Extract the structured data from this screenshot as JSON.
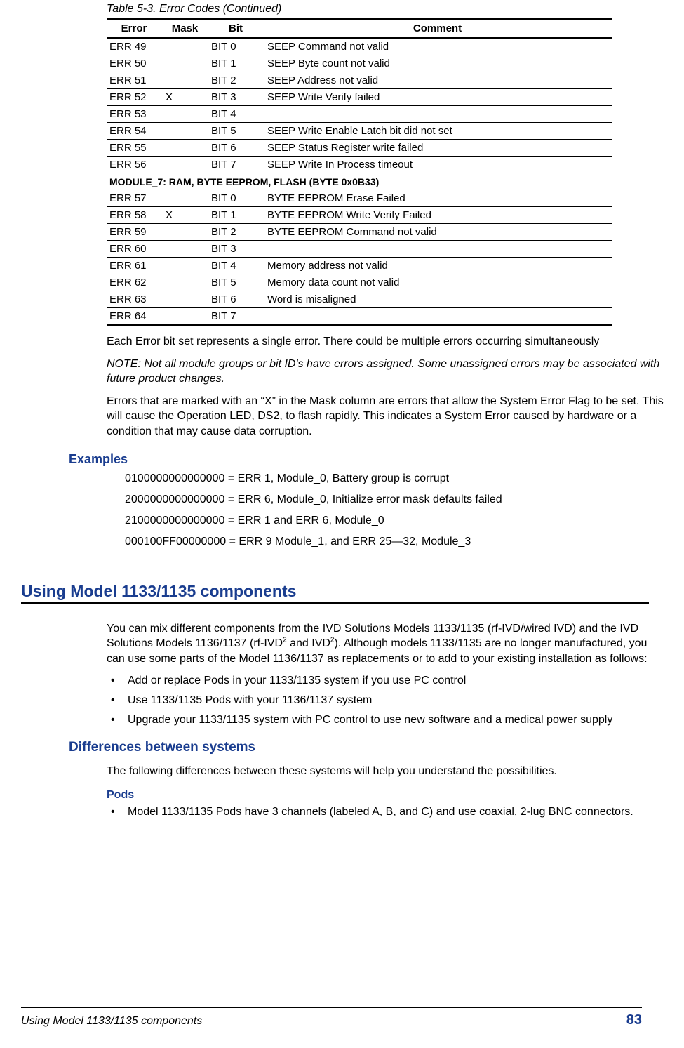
{
  "colors": {
    "accent": "#1a3d8f",
    "rule": "#000000",
    "text": "#000000",
    "background": "#ffffff"
  },
  "tableCaption": "Table 5-3. Error Codes  (Continued)",
  "columns": [
    "Error",
    "Mask",
    "Bit",
    "Comment"
  ],
  "rows": [
    {
      "error": "ERR 49",
      "mask": "",
      "bit": "BIT 0",
      "comment": "SEEP Command not valid"
    },
    {
      "error": "ERR 50",
      "mask": "",
      "bit": "BIT 1",
      "comment": "SEEP Byte count not valid"
    },
    {
      "error": "ERR 51",
      "mask": "",
      "bit": "BIT 2",
      "comment": "SEEP Address not valid"
    },
    {
      "error": "ERR 52",
      "mask": "X",
      "bit": "BIT 3",
      "comment": "SEEP Write Verify failed"
    },
    {
      "error": "ERR 53",
      "mask": "",
      "bit": "BIT 4",
      "comment": ""
    },
    {
      "error": "ERR 54",
      "mask": "",
      "bit": "BIT 5",
      "comment": "SEEP Write Enable Latch bit did not set"
    },
    {
      "error": "ERR 55",
      "mask": "",
      "bit": "BIT 6",
      "comment": "SEEP Status Register write failed"
    },
    {
      "error": "ERR 56",
      "mask": "",
      "bit": "BIT 7",
      "comment": "SEEP Write In Process timeout"
    },
    {
      "section": "MODULE_7: RAM, BYTE EEPROM, FLASH (BYTE 0x0B33)"
    },
    {
      "error": "ERR 57",
      "mask": "",
      "bit": "BIT 0",
      "comment": "BYTE EEPROM Erase Failed"
    },
    {
      "error": "ERR 58",
      "mask": "X",
      "bit": "BIT 1",
      "comment": "BYTE EEPROM Write Verify Failed"
    },
    {
      "error": "ERR 59",
      "mask": "",
      "bit": "BIT 2",
      "comment": "BYTE EEPROM Command not valid"
    },
    {
      "error": "ERR 60",
      "mask": "",
      "bit": "BIT 3",
      "comment": ""
    },
    {
      "error": "ERR 61",
      "mask": "",
      "bit": "BIT 4",
      "comment": "Memory address not valid"
    },
    {
      "error": "ERR 62",
      "mask": "",
      "bit": "BIT 5",
      "comment": "Memory data count not valid"
    },
    {
      "error": "ERR 63",
      "mask": "",
      "bit": "BIT 6",
      "comment": "Word is misaligned"
    },
    {
      "error": "ERR 64",
      "mask": "",
      "bit": "BIT 7",
      "comment": ""
    }
  ],
  "para1": "Each Error bit set represents a single error. There could be multiple errors occurring simultaneously",
  "note": "NOTE: Not all module groups or bit ID's have errors assigned. Some unassigned errors may be associated with future product changes.",
  "para2": "Errors that are marked with an “X” in the Mask column are errors that allow the System Error Flag to be set. This will cause the Operation LED, DS2, to flash rapidly. This indicates a System Error caused by hardware or a condition that may cause data corruption.",
  "examplesHeading": "Examples",
  "examples": [
    "0100000000000000 = ERR 1, Module_0, Battery group is corrupt",
    "2000000000000000 = ERR 6, Module_0, Initialize error mask defaults failed",
    "2100000000000000 = ERR 1 and ERR 6, Module_0",
    "000100FF00000000 = ERR 9 Module_1, and ERR 25—32, Module_3"
  ],
  "sectionHeading": "Using Model 1133/1135 components",
  "sectionBody_before": "You can mix different components from the IVD Solutions Models 1133/1135 (rf-IVD/wired IVD) and the IVD Solutions Models 1136/1137 (rf-IVD",
  "sectionBody_mid": " and IVD",
  "sectionBody_after": "). Although models 1133/1135 are no longer manufactured, you can use some parts of the Model 1136/1137 as replacements or to add to your existing installation as follows:",
  "sup": "2",
  "sectionBullets": [
    "Add or replace Pods in your 1133/1135 system if you use PC control",
    "Use 1133/1135 Pods with your 1136/1137 system",
    "Upgrade your 1133/1135 system with PC control to use new software and a medical power supply"
  ],
  "subHeading": "Differences between systems",
  "subBody": "The following differences between these systems will help you understand the possibilities.",
  "subsubHeading": "Pods",
  "podsBullet": "Model 1133/1135 Pods have 3 channels (labeled A, B, and C) and use coaxial, 2-lug BNC connectors.",
  "footerLeft": "Using Model 1133/1135 components",
  "footerPage": "83"
}
